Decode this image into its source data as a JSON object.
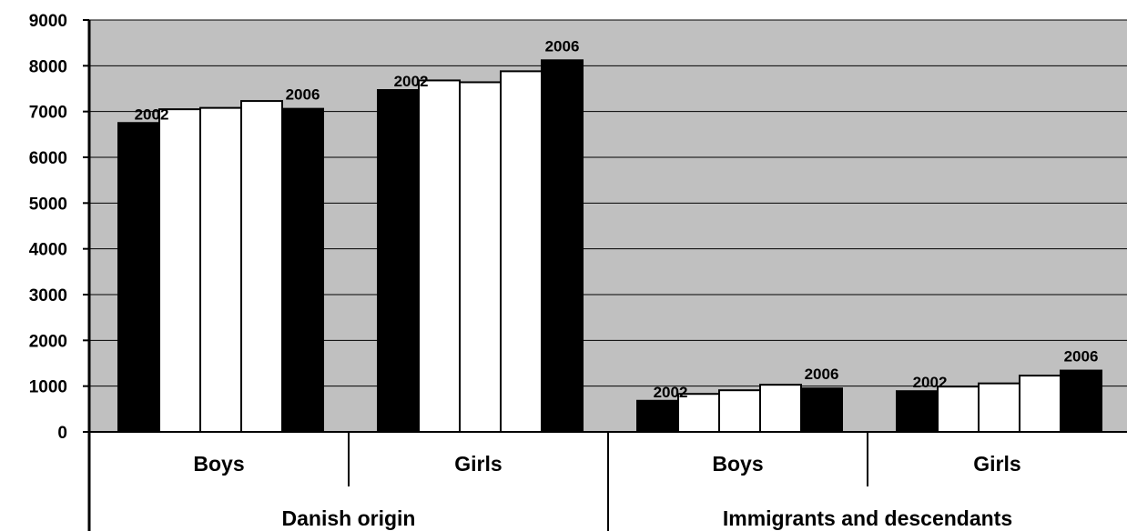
{
  "chart_data": {
    "type": "bar",
    "title": "",
    "xlabel": "",
    "ylabel": "",
    "ylim": [
      0,
      9000
    ],
    "yticks": [
      0,
      1000,
      2000,
      3000,
      4000,
      5000,
      6000,
      7000,
      8000,
      9000
    ],
    "ytick_labels": [
      "0",
      "1000",
      "2000",
      "3000",
      "4000",
      "5000",
      "6000",
      "7000",
      "8000",
      "9000"
    ],
    "grid": true,
    "legend": "none",
    "years": [
      "2002",
      "2003",
      "2004",
      "2005",
      "2006"
    ],
    "year_labels_shown": [
      "2002",
      "2006"
    ],
    "colors": {
      "plot_bg": "#c0c0c0",
      "bar_dark": "#000000",
      "bar_light": "#ffffff",
      "outline": "#000000"
    },
    "groups": [
      {
        "label": "Danish origin",
        "categories": [
          {
            "label": "Boys",
            "values": [
              6750,
              7050,
              7080,
              7230,
              7060
            ]
          },
          {
            "label": "Girls",
            "values": [
              7470,
              7680,
              7640,
              7880,
              8120
            ]
          }
        ]
      },
      {
        "label": "Immigrants and descendants",
        "categories": [
          {
            "label": "Boys",
            "values": [
              680,
              830,
              910,
              1030,
              950
            ]
          },
          {
            "label": "Girls",
            "values": [
              890,
              990,
              1060,
              1230,
              1340
            ]
          }
        ]
      }
    ]
  }
}
